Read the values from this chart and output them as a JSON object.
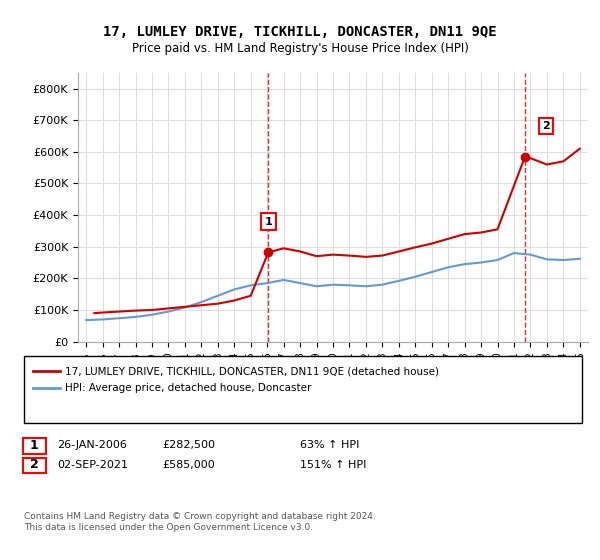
{
  "title": "17, LUMLEY DRIVE, TICKHILL, DONCASTER, DN11 9QE",
  "subtitle": "Price paid vs. HM Land Registry's House Price Index (HPI)",
  "legend_line1": "17, LUMLEY DRIVE, TICKHILL, DONCASTER, DN11 9QE (detached house)",
  "legend_line2": "HPI: Average price, detached house, Doncaster",
  "annotation1_label": "1",
  "annotation1_date": "26-JAN-2006",
  "annotation1_price": "£282,500",
  "annotation1_hpi": "63% ↑ HPI",
  "annotation2_label": "2",
  "annotation2_date": "02-SEP-2021",
  "annotation2_price": "£585,000",
  "annotation2_hpi": "151% ↑ HPI",
  "footer": "Contains HM Land Registry data © Crown copyright and database right 2024.\nThis data is licensed under the Open Government Licence v3.0.",
  "sale1_x": 2006.07,
  "sale1_y": 282500,
  "sale2_x": 2021.67,
  "sale2_y": 585000,
  "ylim": [
    0,
    850000
  ],
  "xlim_left": 1994.5,
  "xlim_right": 2025.5,
  "line_color_red": "#cc0000",
  "line_color_blue": "#6699cc",
  "dashed_line_color": "#cc0000",
  "background_color": "#ffffff",
  "grid_color": "#dddddd",
  "years_hpi": [
    1995,
    1996,
    1997,
    1998,
    1999,
    2000,
    2001,
    2002,
    2003,
    2004,
    2005,
    2006,
    2007,
    2008,
    2009,
    2010,
    2011,
    2012,
    2013,
    2014,
    2015,
    2016,
    2017,
    2018,
    2019,
    2020,
    2021,
    2022,
    2023,
    2024,
    2025
  ],
  "hpi_values": [
    68000,
    70000,
    74000,
    78000,
    85000,
    95000,
    108000,
    125000,
    145000,
    165000,
    178000,
    185000,
    195000,
    185000,
    175000,
    180000,
    178000,
    175000,
    180000,
    192000,
    205000,
    220000,
    235000,
    245000,
    250000,
    258000,
    280000,
    275000,
    260000,
    258000,
    262000
  ],
  "price_paid_years": [
    1995.5,
    1996,
    1997,
    1998,
    1999,
    2000,
    2001,
    2002,
    2003,
    2004,
    2005,
    2006.07,
    2007,
    2008,
    2009,
    2010,
    2011,
    2012,
    2013,
    2014,
    2015,
    2016,
    2017,
    2018,
    2019,
    2020,
    2021.67,
    2022,
    2023,
    2024,
    2025
  ],
  "price_paid_values": [
    90000,
    92000,
    95000,
    98000,
    100000,
    105000,
    110000,
    115000,
    120000,
    130000,
    145000,
    282500,
    295000,
    285000,
    270000,
    275000,
    272000,
    268000,
    272000,
    285000,
    298000,
    310000,
    325000,
    340000,
    345000,
    355000,
    585000,
    580000,
    560000,
    570000,
    610000
  ]
}
